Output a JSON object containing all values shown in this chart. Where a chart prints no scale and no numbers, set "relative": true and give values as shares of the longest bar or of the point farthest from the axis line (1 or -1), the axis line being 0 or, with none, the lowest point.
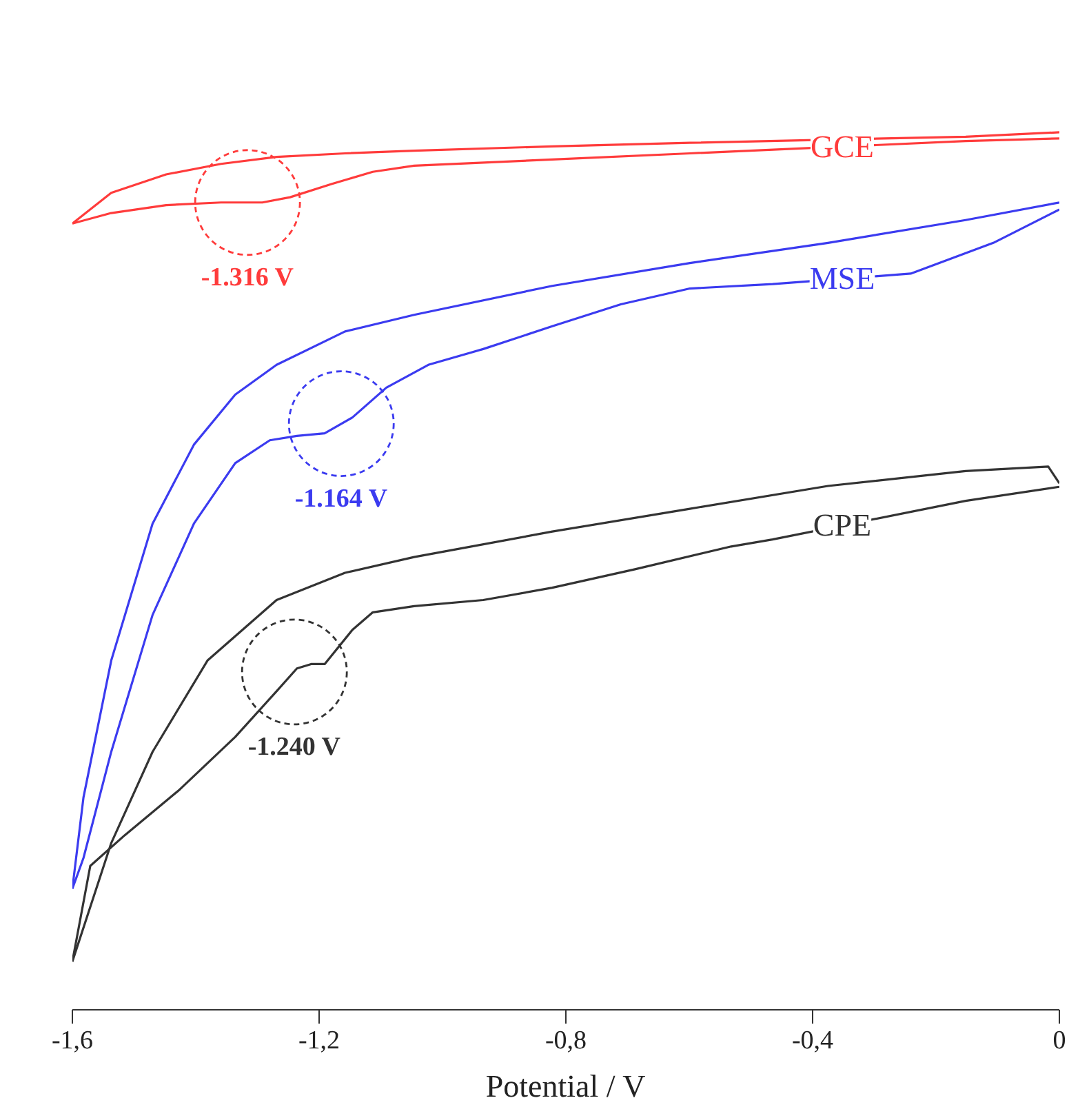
{
  "chart_data": {
    "type": "line",
    "relative": true,
    "xlabel": "Potential / V",
    "xlim": [
      -1.6,
      0
    ],
    "xticks": [
      {
        "value": -1.6,
        "label": "-1,6"
      },
      {
        "value": -1.2,
        "label": "-1,2"
      },
      {
        "value": -0.8,
        "label": "-0,8"
      },
      {
        "value": -0.4,
        "label": "-0,4"
      },
      0
    ],
    "grid": false,
    "legend": false,
    "line_style": "solid",
    "marker": "none",
    "series": [
      {
        "color": "#ff3b3b",
        "x": [
          0,
          -0.152,
          -0.599,
          -0.822,
          -1.046,
          -1.158,
          -1.269,
          -1.359,
          -1.448,
          -1.537,
          -1.6
        ],
        "values": [
          1.0,
          0.995,
          0.988,
          0.984,
          0.979,
          0.976,
          0.972,
          0.964,
          0.952,
          0.931,
          0.896
        ]
      },
      {
        "name": "GCE",
        "color": "#ff3b3b",
        "x": [
          -1.6,
          -1.537,
          -1.448,
          -1.359,
          -1.292,
          -1.247,
          -1.18,
          -1.113,
          -1.046,
          -0.822,
          -0.599,
          -0.152,
          0
        ],
        "values": [
          0.896,
          0.908,
          0.917,
          0.92,
          0.92,
          0.926,
          0.941,
          0.955,
          0.962,
          0.969,
          0.976,
          0.99,
          0.993
        ]
      },
      {
        "color": "#3b3bf0",
        "x": [
          0,
          -0.152,
          -0.375,
          -0.599,
          -0.822,
          -1.046,
          -1.158,
          -1.269,
          -1.336,
          -1.403,
          -1.47,
          -1.537,
          -1.582,
          -1.6
        ],
        "values": [
          0.92,
          0.9,
          0.874,
          0.851,
          0.825,
          0.792,
          0.773,
          0.735,
          0.701,
          0.644,
          0.554,
          0.398,
          0.242,
          0.138
        ]
      },
      {
        "name": "MSE",
        "color": "#3b3bf0",
        "x": [
          -1.6,
          -1.582,
          -1.537,
          -1.47,
          -1.403,
          -1.336,
          -1.28,
          -1.236,
          -1.191,
          -1.146,
          -1.091,
          -1.023,
          -0.934,
          -0.822,
          -0.711,
          -0.599,
          -0.465,
          -0.241,
          -0.107,
          0
        ],
        "values": [
          0.138,
          0.173,
          0.294,
          0.45,
          0.554,
          0.623,
          0.649,
          0.654,
          0.657,
          0.675,
          0.709,
          0.735,
          0.753,
          0.779,
          0.804,
          0.822,
          0.827,
          0.839,
          0.874,
          0.912
        ]
      },
      {
        "color": "#333333",
        "x": [
          0,
          -0.018,
          -0.152,
          -0.375,
          -0.599,
          -0.822,
          -1.046,
          -1.158,
          -1.269,
          -1.381,
          -1.47,
          -1.537,
          -1.6
        ],
        "values": [
          0.6,
          0.619,
          0.614,
          0.597,
          0.571,
          0.545,
          0.516,
          0.498,
          0.467,
          0.398,
          0.294,
          0.19,
          0.055
        ]
      },
      {
        "name": "CPE",
        "color": "#333333",
        "x": [
          -1.6,
          -1.571,
          -1.515,
          -1.426,
          -1.336,
          -1.269,
          -1.236,
          -1.213,
          -1.191,
          -1.146,
          -1.113,
          -1.046,
          -0.934,
          -0.822,
          -0.688,
          -0.532,
          -0.465,
          -0.152,
          0
        ],
        "values": [
          0.055,
          0.164,
          0.199,
          0.251,
          0.311,
          0.363,
          0.389,
          0.394,
          0.394,
          0.433,
          0.453,
          0.46,
          0.467,
          0.481,
          0.502,
          0.528,
          0.536,
          0.58,
          0.596
        ]
      }
    ],
    "annotations": [
      {
        "text": "-1.316 V",
        "x": -1.316,
        "y": 0.92
      },
      {
        "text": "-1.164 V",
        "x": -1.164,
        "y": 0.668
      },
      {
        "text": "-1.240 V",
        "x": -1.24,
        "y": 0.385
      }
    ]
  }
}
